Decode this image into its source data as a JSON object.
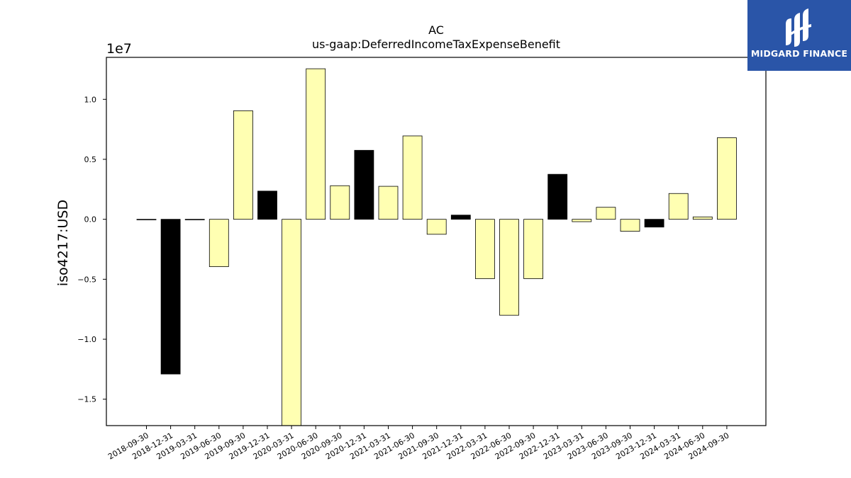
{
  "header": {
    "ticker": "AC",
    "metric": "us-gaap:DeferredIncomeTaxExpenseBenefit"
  },
  "logo": {
    "text": "MIDGARD FINANCE",
    "color": "#2a55a8"
  },
  "colors": {
    "bar_positive_default": "#ffffb2",
    "bar_highlight": "#000000",
    "axis": "#000000"
  },
  "chart_data": {
    "type": "bar",
    "title": "AC",
    "subtitle": "us-gaap:DeferredIncomeTaxExpenseBenefit",
    "ylabel": "iso4217:USD",
    "xlabel": "",
    "scale_label": "1e7",
    "ylim": [
      -17200000,
      13500000
    ],
    "yticks": [
      {
        "value": 10000000,
        "label": "1.0"
      },
      {
        "value": 5000000,
        "label": "0.5"
      },
      {
        "value": 0,
        "label": "0.0"
      },
      {
        "value": -5000000,
        "label": "−0.5"
      },
      {
        "value": -10000000,
        "label": "−1.0"
      },
      {
        "value": -15000000,
        "label": "−1.5"
      }
    ],
    "grid": false,
    "categories": [
      "2018-09-30",
      "2018-12-31",
      "2019-03-31",
      "2019-06-30",
      "2019-09-30",
      "2019-12-31",
      "2020-03-31",
      "2020-06-30",
      "2020-09-30",
      "2020-12-31",
      "2021-03-31",
      "2021-06-30",
      "2021-09-30",
      "2021-12-31",
      "2022-03-31",
      "2022-06-30",
      "2022-09-30",
      "2022-12-31",
      "2023-03-31",
      "2023-06-30",
      "2023-09-30",
      "2023-12-31",
      "2024-03-31",
      "2024-06-30",
      "2024-09-30"
    ],
    "values": [
      0,
      -12900000,
      0,
      -3950000,
      9050000,
      2350000,
      -17200000,
      12550000,
      2800000,
      5750000,
      2750000,
      6950000,
      -1250000,
      350000,
      -4950000,
      -8000000,
      -4950000,
      3750000,
      -200000,
      1000000,
      -1000000,
      -650000,
      2150000,
      200000,
      6800000
    ],
    "highlight": [
      false,
      true,
      false,
      false,
      false,
      true,
      false,
      false,
      false,
      true,
      false,
      false,
      false,
      true,
      false,
      false,
      false,
      true,
      false,
      false,
      false,
      true,
      false,
      false,
      false
    ]
  }
}
